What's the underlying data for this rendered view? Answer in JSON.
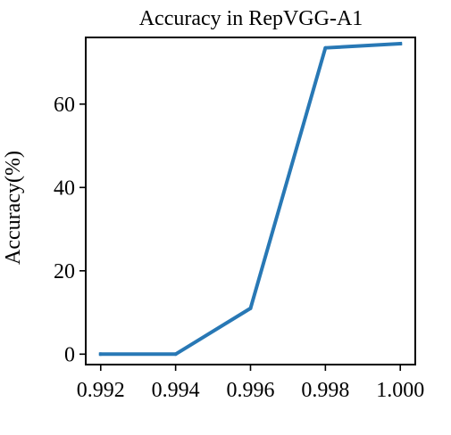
{
  "chart_data": {
    "type": "line",
    "title": "Accuracy in RepVGG-A1",
    "xlabel": "",
    "ylabel": "Accuracy(%)",
    "x": [
      0.992,
      0.994,
      0.996,
      0.998,
      1.0
    ],
    "xticks": [
      "0.992",
      "0.994",
      "0.996",
      "0.998",
      "1.000"
    ],
    "yticks": [
      "0",
      "20",
      "40",
      "60"
    ],
    "xlim": [
      0.992,
      1.0
    ],
    "ylim": [
      0,
      76
    ],
    "grid": false,
    "series": [
      {
        "values": [
          0,
          0,
          11,
          73.5,
          74.5
        ],
        "color": "#2878b5"
      }
    ]
  }
}
